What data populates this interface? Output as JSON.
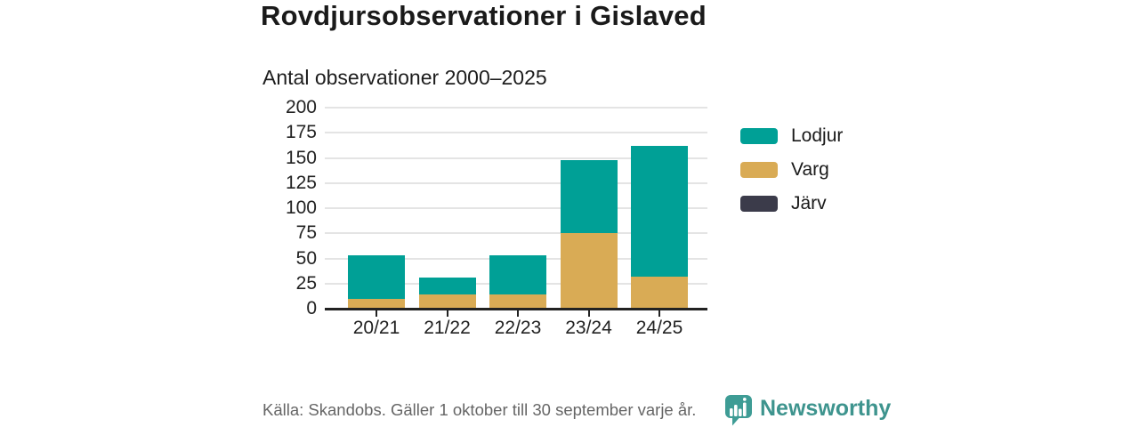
{
  "title": "Rovdjursobservationer i Gislaved",
  "subtitle": "Antal observationer 2000–2025",
  "footer": {
    "source": "Källa: Skandobs. Gäller 1 oktober till 30 september varje år.",
    "brand": "Newsworthy"
  },
  "colors": {
    "lodjur_teal": "#00A096",
    "varg_gold": "#D9AB55",
    "jarv_dark": "#3B3B4A",
    "gridline": "#E4E4E4",
    "axis": "#222222",
    "text": "#1A1A1A",
    "muted_text": "#666666",
    "brand_teal": "#3E948E",
    "logo_bubble": "#3E9C95"
  },
  "chart_data": {
    "type": "bar",
    "stacked": true,
    "title": "Rovdjursobservationer i Gislaved",
    "subtitle": "Antal observationer 2000–2025",
    "categories": [
      "20/21",
      "21/22",
      "22/23",
      "23/24",
      "24/25"
    ],
    "series": [
      {
        "name": "Lodjur",
        "color": "#00A096",
        "values": [
          43,
          17,
          39,
          73,
          130
        ]
      },
      {
        "name": "Varg",
        "color": "#D9AB55",
        "values": [
          10,
          14,
          14,
          75,
          32
        ]
      },
      {
        "name": "Järv",
        "color": "#3B3B4A",
        "values": [
          0,
          0,
          0,
          0,
          0
        ]
      }
    ],
    "stack_order_bottom_to_top": [
      "Varg",
      "Lodjur",
      "Järv"
    ],
    "totals": [
      53,
      31,
      53,
      148,
      162
    ],
    "xlabel": "",
    "ylabel": "",
    "ylim": [
      0,
      200
    ],
    "yticks": [
      0,
      25,
      50,
      75,
      100,
      125,
      150,
      175,
      200
    ],
    "grid": true,
    "legend_position": "right"
  }
}
